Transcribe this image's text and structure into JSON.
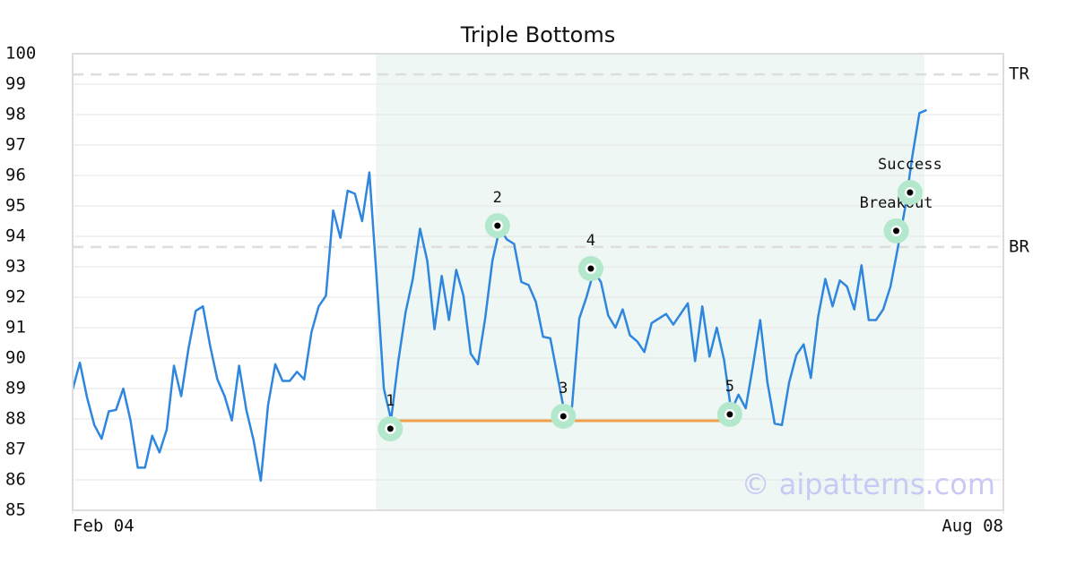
{
  "chart_data": {
    "type": "line",
    "title": "Triple Bottoms",
    "color": "#2e86de",
    "x": [
      0,
      1,
      2,
      3,
      4,
      5,
      6,
      7,
      8,
      9,
      10,
      11,
      12,
      13,
      14,
      15,
      16,
      17,
      18,
      19,
      20,
      21,
      22,
      23,
      24,
      25,
      26,
      27,
      28,
      29,
      30,
      31,
      32,
      33,
      34,
      35,
      36,
      37,
      38,
      39,
      40,
      41,
      42,
      43,
      44,
      45,
      46,
      47,
      48,
      49,
      50,
      51,
      52,
      53,
      54,
      55,
      56,
      57,
      58,
      59,
      60,
      61,
      62,
      63,
      64,
      65,
      66,
      67,
      68,
      69,
      70,
      71,
      72,
      73,
      74,
      75,
      76,
      77,
      78,
      79,
      80,
      81,
      82,
      83,
      84,
      85,
      86,
      87,
      88,
      89,
      90,
      91,
      92,
      93,
      94,
      95,
      96,
      97,
      98,
      99,
      100,
      101,
      102,
      103,
      104,
      105,
      106,
      107,
      108,
      109,
      110,
      111,
      112,
      113,
      114,
      115,
      116,
      117,
      118
    ],
    "values": [
      88.97,
      89.85,
      88.7,
      87.8,
      87.35,
      88.25,
      88.3,
      89.0,
      87.95,
      86.4,
      86.4,
      87.45,
      86.9,
      87.65,
      89.75,
      88.75,
      90.3,
      91.55,
      91.7,
      90.4,
      89.3,
      88.75,
      87.95,
      89.75,
      88.3,
      87.3,
      85.97,
      88.45,
      89.8,
      89.25,
      89.25,
      89.55,
      89.3,
      90.85,
      91.7,
      92.05,
      94.85,
      93.95,
      95.5,
      95.4,
      94.5,
      96.1,
      92.65,
      89.0,
      87.97,
      89.9,
      91.5,
      92.6,
      94.25,
      93.2,
      90.95,
      92.7,
      91.25,
      92.9,
      92.05,
      90.15,
      89.8,
      91.3,
      93.2,
      94.25,
      93.9,
      93.75,
      92.5,
      92.4,
      91.85,
      90.7,
      90.65,
      89.4,
      88.15,
      88.4,
      91.3,
      92.0,
      92.85,
      92.5,
      91.4,
      91.0,
      91.6,
      90.75,
      90.55,
      90.2,
      91.15,
      91.3,
      91.45,
      91.1,
      91.45,
      91.8,
      89.9,
      91.7,
      90.05,
      91.0,
      89.95,
      88.25,
      88.8,
      88.35,
      89.75,
      91.25,
      89.2,
      87.85,
      87.8,
      89.2,
      90.1,
      90.45,
      89.35,
      91.35,
      92.6,
      91.7,
      92.55,
      92.35,
      91.6,
      93.05,
      91.25,
      91.25,
      91.6,
      92.35,
      93.6,
      94.9,
      96.6,
      98.05,
      98.15
    ],
    "xlim": [
      0,
      128.6
    ],
    "xticks": [
      {
        "value": 0,
        "label": "Feb 04"
      },
      {
        "value": 128.6,
        "label": "Aug 08"
      }
    ],
    "ylim": [
      85,
      100
    ],
    "yticks": [
      85,
      86,
      87,
      88,
      89,
      90,
      91,
      92,
      93,
      94,
      95,
      96,
      97,
      98,
      99,
      100
    ],
    "grid": true,
    "zone": {
      "x": [
        41.9,
        117.7
      ],
      "color": "#eef7f3"
    },
    "support": {
      "x": [
        43.9,
        90.8
      ],
      "y": 87.94,
      "color": "#f0a04b"
    },
    "levels": [
      {
        "label": "TR",
        "value": 99.32
      },
      {
        "label": "BR",
        "value": 93.65
      }
    ],
    "points": [
      {
        "label": "1",
        "x": 43.9,
        "y": 87.68
      },
      {
        "label": "2",
        "x": 58.7,
        "y": 94.35
      },
      {
        "label": "3",
        "x": 67.8,
        "y": 88.09
      },
      {
        "label": "4",
        "x": 71.6,
        "y": 92.94
      },
      {
        "label": "5",
        "x": 90.8,
        "y": 88.15
      },
      {
        "label": "Breakout",
        "x": 113.8,
        "y": 94.18
      },
      {
        "label": "Success",
        "x": 115.7,
        "y": 95.44
      }
    ],
    "watermark": "© aipatterns.com"
  }
}
